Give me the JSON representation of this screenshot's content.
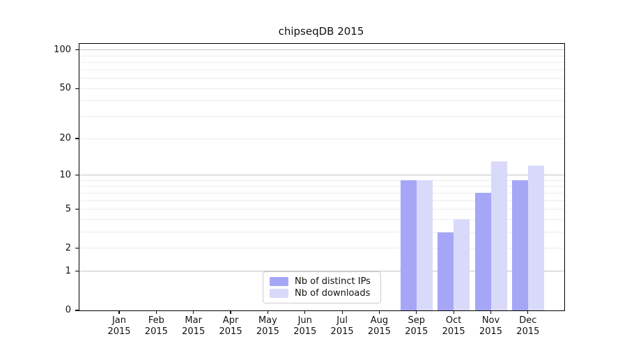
{
  "chart_data": {
    "type": "bar",
    "title": "chipseqDB 2015",
    "x_categories": [
      "Jan",
      "Feb",
      "Mar",
      "Apr",
      "May",
      "Jun",
      "Jul",
      "Aug",
      "Sep",
      "Oct",
      "Nov",
      "Dec"
    ],
    "x_year": "2015",
    "series": [
      {
        "name": "Nb of distinct IPs",
        "color": "#a6a6f7",
        "values": [
          0,
          0,
          0,
          0,
          0,
          0,
          0,
          0,
          9,
          3,
          7,
          9
        ]
      },
      {
        "name": "Nb of downloads",
        "color": "#d9d9f9",
        "values": [
          0,
          0,
          0,
          0,
          0,
          0,
          0,
          0,
          9,
          4,
          13,
          12
        ]
      }
    ],
    "y_scale": "log1p",
    "y_tick_values": [
      0,
      1,
      2,
      5,
      10,
      20,
      50,
      100
    ],
    "y_tick_labels": [
      "0",
      "1",
      "2",
      "5",
      "10",
      "20",
      "50",
      "100"
    ],
    "ylim": [
      0,
      112
    ],
    "grid": {
      "major_values": [
        1,
        10,
        100
      ],
      "minor_values": [
        2,
        3,
        4,
        5,
        6,
        7,
        8,
        9,
        20,
        30,
        40,
        50,
        60,
        70,
        80,
        90
      ],
      "major_color": "#c4c4c4",
      "minor_color": "#ececec"
    },
    "legend_position": "lower center",
    "axis_color": "#000000"
  }
}
